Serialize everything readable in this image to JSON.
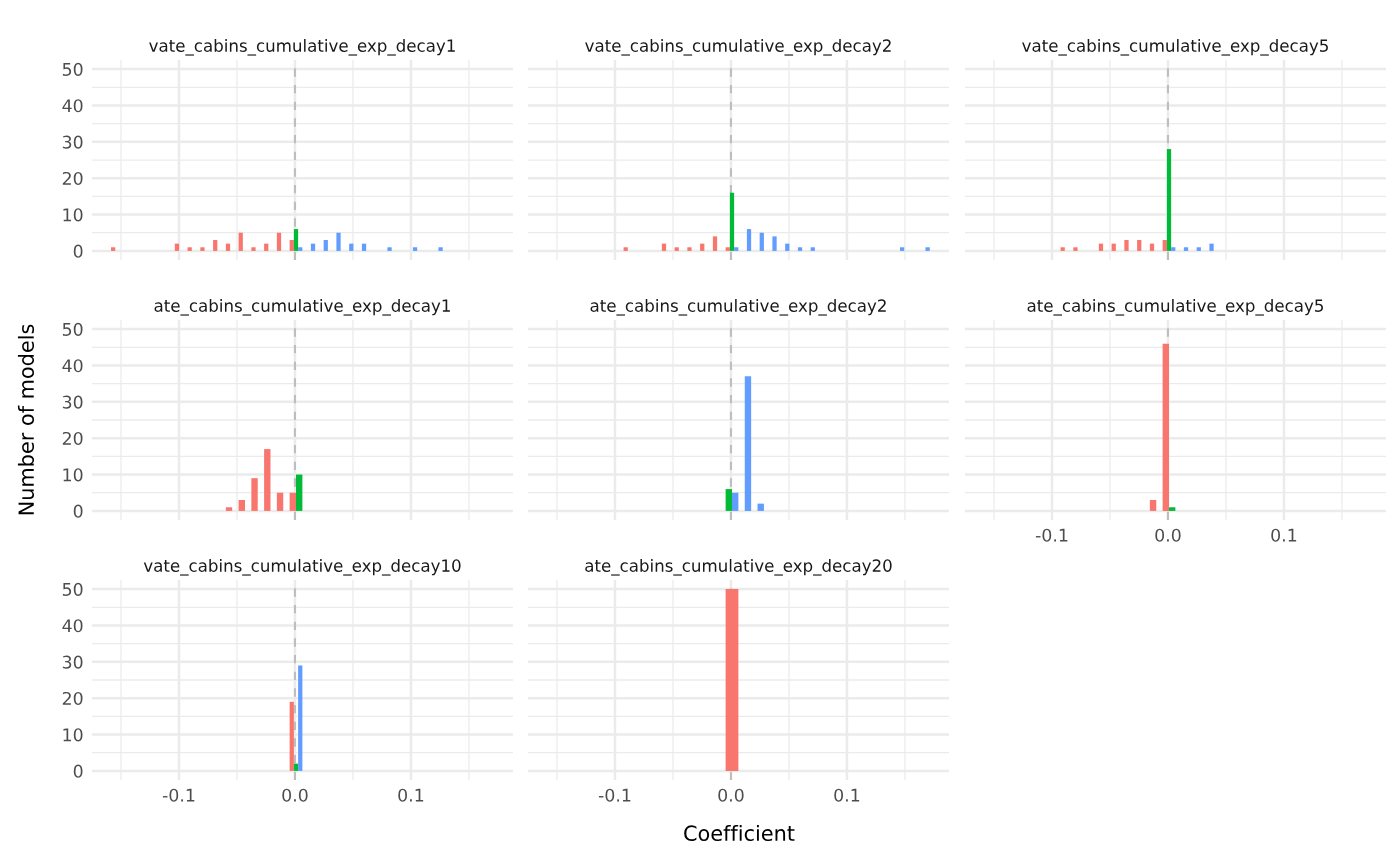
{
  "chart_data": [
    {
      "type": "histogram",
      "title": "vate_cabins_cumulative_exp_decay1",
      "bins": [
        -0.1586,
        -0.1476,
        -0.1366,
        -0.1256,
        -0.1146,
        -0.1036,
        -0.0926,
        -0.0816,
        -0.0706,
        -0.0596,
        -0.0486,
        -0.0376,
        -0.0266,
        -0.0156,
        -0.0046,
        0.0064,
        0.0174,
        0.0284,
        0.0394,
        0.0504,
        0.0614,
        0.0724,
        0.0834,
        0.0944,
        0.1054,
        0.1164,
        0.1274,
        0.1384,
        0.1494,
        0.1604,
        0.1714
      ],
      "series": [
        {
          "color": "#f8766d",
          "values": [
            1,
            0,
            0,
            0,
            0,
            2,
            1,
            1,
            3,
            2,
            5,
            1,
            2,
            5,
            3,
            0,
            0,
            0,
            0,
            0,
            0,
            0,
            0,
            0,
            0,
            0,
            0,
            0,
            0,
            0
          ]
        },
        {
          "color": "#00ba38",
          "values": [
            0,
            0,
            0,
            0,
            0,
            0,
            0,
            0,
            0,
            0,
            0,
            0,
            0,
            0,
            6,
            0,
            0,
            0,
            0,
            0,
            0,
            0,
            0,
            0,
            0,
            0,
            0,
            0,
            0,
            0
          ]
        },
        {
          "color": "#619cff",
          "values": [
            0,
            0,
            0,
            0,
            0,
            0,
            0,
            0,
            0,
            0,
            0,
            0,
            0,
            0,
            1,
            2,
            3,
            5,
            2,
            2,
            0,
            1,
            0,
            1,
            0,
            1,
            0,
            0,
            0,
            0
          ]
        }
      ],
      "xlim": [
        -0.175,
        0.188
      ],
      "ylim": [
        -2.5,
        52.5
      ],
      "xticks": [
        -0.1,
        0,
        0.1
      ],
      "yticks": [
        0,
        10,
        20,
        30,
        40,
        50
      ],
      "tick_labels": "y",
      "grid": true,
      "ref_lines": [
        {
          "axis": "x",
          "value": 0,
          "color": "#bebebe",
          "line_style": "dashed"
        }
      ]
    },
    {
      "type": "histogram",
      "title": "vate_cabins_cumulative_exp_decay2",
      "bins": [
        -0.1586,
        -0.1476,
        -0.1366,
        -0.1256,
        -0.1146,
        -0.1036,
        -0.0926,
        -0.0816,
        -0.0706,
        -0.0596,
        -0.0486,
        -0.0376,
        -0.0266,
        -0.0156,
        -0.0046,
        0.0064,
        0.0174,
        0.0284,
        0.0394,
        0.0504,
        0.0614,
        0.0724,
        0.0834,
        0.0944,
        0.1054,
        0.1164,
        0.1274,
        0.1384,
        0.1494,
        0.1604,
        0.1714
      ],
      "series": [
        {
          "color": "#f8766d",
          "values": [
            0,
            0,
            0,
            0,
            0,
            0,
            1,
            0,
            0,
            2,
            1,
            1,
            2,
            4,
            1,
            0,
            0,
            0,
            0,
            0,
            0,
            0,
            0,
            0,
            0,
            0,
            0,
            0,
            0,
            0
          ]
        },
        {
          "color": "#00ba38",
          "values": [
            0,
            0,
            0,
            0,
            0,
            0,
            0,
            0,
            0,
            0,
            0,
            0,
            0,
            0,
            16,
            0,
            0,
            0,
            0,
            0,
            0,
            0,
            0,
            0,
            0,
            0,
            0,
            0,
            0,
            0
          ]
        },
        {
          "color": "#619cff",
          "values": [
            0,
            0,
            0,
            0,
            0,
            0,
            0,
            0,
            0,
            0,
            0,
            0,
            0,
            0,
            1,
            6,
            5,
            4,
            2,
            1,
            1,
            0,
            0,
            0,
            0,
            0,
            0,
            1,
            0,
            1
          ]
        }
      ],
      "xlim": [
        -0.175,
        0.188
      ],
      "ylim": [
        -2.5,
        52.5
      ],
      "xticks": [
        -0.1,
        0,
        0.1
      ],
      "yticks": [
        0,
        10,
        20,
        30,
        40,
        50
      ],
      "tick_labels": false,
      "grid": true,
      "ref_lines": [
        {
          "axis": "x",
          "value": 0,
          "color": "#bebebe",
          "line_style": "dashed"
        }
      ]
    },
    {
      "type": "histogram",
      "title": "vate_cabins_cumulative_exp_decay5",
      "bins": [
        -0.1586,
        -0.1476,
        -0.1366,
        -0.1256,
        -0.1146,
        -0.1036,
        -0.0926,
        -0.0816,
        -0.0706,
        -0.0596,
        -0.0486,
        -0.0376,
        -0.0266,
        -0.0156,
        -0.0046,
        0.0064,
        0.0174,
        0.0284,
        0.0394,
        0.0504,
        0.0614,
        0.0724,
        0.0834,
        0.0944,
        0.1054,
        0.1164,
        0.1274,
        0.1384,
        0.1494,
        0.1604,
        0.1714
      ],
      "series": [
        {
          "color": "#f8766d",
          "values": [
            0,
            0,
            0,
            0,
            0,
            0,
            1,
            1,
            0,
            2,
            2,
            3,
            3,
            2,
            3,
            0,
            0,
            0,
            0,
            0,
            0,
            0,
            0,
            0,
            0,
            0,
            0,
            0,
            0,
            0
          ]
        },
        {
          "color": "#00ba38",
          "values": [
            0,
            0,
            0,
            0,
            0,
            0,
            0,
            0,
            0,
            0,
            0,
            0,
            0,
            0,
            28,
            0,
            0,
            0,
            0,
            0,
            0,
            0,
            0,
            0,
            0,
            0,
            0,
            0,
            0,
            0
          ]
        },
        {
          "color": "#619cff",
          "values": [
            0,
            0,
            0,
            0,
            0,
            0,
            0,
            0,
            0,
            0,
            0,
            0,
            0,
            0,
            1,
            1,
            1,
            2,
            0,
            0,
            0,
            0,
            0,
            0,
            0,
            0,
            0,
            0,
            0,
            0
          ]
        }
      ],
      "xlim": [
        -0.175,
        0.188
      ],
      "ylim": [
        -2.5,
        52.5
      ],
      "xticks": [
        -0.1,
        0,
        0.1
      ],
      "yticks": [
        0,
        10,
        20,
        30,
        40,
        50
      ],
      "tick_labels": false,
      "grid": true,
      "ref_lines": [
        {
          "axis": "x",
          "value": 0,
          "color": "#bebebe",
          "line_style": "dashed"
        }
      ]
    },
    {
      "type": "histogram",
      "title": "ate_cabins_cumulative_exp_decay1",
      "ylabel": "Number of models",
      "bins": [
        -0.1586,
        -0.1476,
        -0.1366,
        -0.1256,
        -0.1146,
        -0.1036,
        -0.0926,
        -0.0816,
        -0.0706,
        -0.0596,
        -0.0486,
        -0.0376,
        -0.0266,
        -0.0156,
        -0.0046,
        0.0064,
        0.0174,
        0.0284,
        0.0394,
        0.0504,
        0.0614,
        0.0724,
        0.0834,
        0.0944,
        0.1054,
        0.1164,
        0.1274,
        0.1384,
        0.1494,
        0.1604,
        0.1714
      ],
      "series": [
        {
          "color": "#f8766d",
          "values": [
            0,
            0,
            0,
            0,
            0,
            0,
            0,
            0,
            0,
            1,
            3,
            9,
            17,
            5,
            5,
            0,
            0,
            0,
            0,
            0,
            0,
            0,
            0,
            0,
            0,
            0,
            0,
            0,
            0,
            0
          ]
        },
        {
          "color": "#00ba38",
          "values": [
            0,
            0,
            0,
            0,
            0,
            0,
            0,
            0,
            0,
            0,
            0,
            0,
            0,
            0,
            10,
            0,
            0,
            0,
            0,
            0,
            0,
            0,
            0,
            0,
            0,
            0,
            0,
            0,
            0,
            0
          ]
        }
      ],
      "xlim": [
        -0.175,
        0.188
      ],
      "ylim": [
        -2.5,
        52.5
      ],
      "xticks": [
        -0.1,
        0,
        0.1
      ],
      "yticks": [
        0,
        10,
        20,
        30,
        40,
        50
      ],
      "tick_labels": "y",
      "grid": true,
      "ref_lines": [
        {
          "axis": "x",
          "value": 0,
          "color": "#bebebe",
          "line_style": "dashed"
        }
      ]
    },
    {
      "type": "histogram",
      "title": "ate_cabins_cumulative_exp_decay2",
      "bins": [
        -0.1586,
        -0.1476,
        -0.1366,
        -0.1256,
        -0.1146,
        -0.1036,
        -0.0926,
        -0.0816,
        -0.0706,
        -0.0596,
        -0.0486,
        -0.0376,
        -0.0266,
        -0.0156,
        -0.0046,
        0.0064,
        0.0174,
        0.0284,
        0.0394,
        0.0504,
        0.0614,
        0.0724,
        0.0834,
        0.0944,
        0.1054,
        0.1164,
        0.1274,
        0.1384,
        0.1494,
        0.1604,
        0.1714
      ],
      "series": [
        {
          "color": "#00ba38",
          "values": [
            0,
            0,
            0,
            0,
            0,
            0,
            0,
            0,
            0,
            0,
            0,
            0,
            0,
            0,
            6,
            0,
            0,
            0,
            0,
            0,
            0,
            0,
            0,
            0,
            0,
            0,
            0,
            0,
            0,
            0
          ]
        },
        {
          "color": "#619cff",
          "values": [
            0,
            0,
            0,
            0,
            0,
            0,
            0,
            0,
            0,
            0,
            0,
            0,
            0,
            0,
            5,
            37,
            2,
            0,
            0,
            0,
            0,
            0,
            0,
            0,
            0,
            0,
            0,
            0,
            0,
            0
          ]
        }
      ],
      "xlim": [
        -0.175,
        0.188
      ],
      "ylim": [
        -2.5,
        52.5
      ],
      "xticks": [
        -0.1,
        0,
        0.1
      ],
      "yticks": [
        0,
        10,
        20,
        30,
        40,
        50
      ],
      "tick_labels": false,
      "grid": true,
      "ref_lines": [
        {
          "axis": "x",
          "value": 0,
          "color": "#bebebe",
          "line_style": "dashed"
        }
      ]
    },
    {
      "type": "histogram",
      "title": "ate_cabins_cumulative_exp_decay5",
      "bins": [
        -0.1586,
        -0.1476,
        -0.1366,
        -0.1256,
        -0.1146,
        -0.1036,
        -0.0926,
        -0.0816,
        -0.0706,
        -0.0596,
        -0.0486,
        -0.0376,
        -0.0266,
        -0.0156,
        -0.0046,
        0.0064,
        0.0174,
        0.0284,
        0.0394,
        0.0504,
        0.0614,
        0.0724,
        0.0834,
        0.0944,
        0.1054,
        0.1164,
        0.1274,
        0.1384,
        0.1494,
        0.1604,
        0.1714
      ],
      "series": [
        {
          "color": "#f8766d",
          "values": [
            0,
            0,
            0,
            0,
            0,
            0,
            0,
            0,
            0,
            0,
            0,
            0,
            0,
            3,
            46,
            0,
            0,
            0,
            0,
            0,
            0,
            0,
            0,
            0,
            0,
            0,
            0,
            0,
            0,
            0
          ]
        },
        {
          "color": "#00ba38",
          "values": [
            0,
            0,
            0,
            0,
            0,
            0,
            0,
            0,
            0,
            0,
            0,
            0,
            0,
            0,
            1,
            0,
            0,
            0,
            0,
            0,
            0,
            0,
            0,
            0,
            0,
            0,
            0,
            0,
            0,
            0
          ]
        }
      ],
      "xlim": [
        -0.175,
        0.188
      ],
      "ylim": [
        -2.5,
        52.5
      ],
      "xticks": [
        {
          "value": -0.1,
          "label": "-0.1"
        },
        {
          "value": 0,
          "label": "0.0"
        },
        {
          "value": 0.1,
          "label": "0.1"
        }
      ],
      "yticks": [
        0,
        10,
        20,
        30,
        40,
        50
      ],
      "tick_labels": "x",
      "grid": true,
      "ref_lines": [
        {
          "axis": "x",
          "value": 0,
          "color": "#bebebe",
          "line_style": "dashed"
        }
      ]
    },
    {
      "type": "histogram",
      "title": "vate_cabins_cumulative_exp_decay10",
      "bins": [
        -0.1586,
        -0.1476,
        -0.1366,
        -0.1256,
        -0.1146,
        -0.1036,
        -0.0926,
        -0.0816,
        -0.0706,
        -0.0596,
        -0.0486,
        -0.0376,
        -0.0266,
        -0.0156,
        -0.0046,
        0.0064,
        0.0174,
        0.0284,
        0.0394,
        0.0504,
        0.0614,
        0.0724,
        0.0834,
        0.0944,
        0.1054,
        0.1164,
        0.1274,
        0.1384,
        0.1494,
        0.1604,
        0.1714
      ],
      "series": [
        {
          "color": "#f8766d",
          "values": [
            0,
            0,
            0,
            0,
            0,
            0,
            0,
            0,
            0,
            0,
            0,
            0,
            0,
            0,
            19,
            0,
            0,
            0,
            0,
            0,
            0,
            0,
            0,
            0,
            0,
            0,
            0,
            0,
            0,
            0
          ]
        },
        {
          "color": "#00ba38",
          "values": [
            0,
            0,
            0,
            0,
            0,
            0,
            0,
            0,
            0,
            0,
            0,
            0,
            0,
            0,
            2,
            0,
            0,
            0,
            0,
            0,
            0,
            0,
            0,
            0,
            0,
            0,
            0,
            0,
            0,
            0
          ]
        },
        {
          "color": "#619cff",
          "values": [
            0,
            0,
            0,
            0,
            0,
            0,
            0,
            0,
            0,
            0,
            0,
            0,
            0,
            0,
            29,
            0,
            0,
            0,
            0,
            0,
            0,
            0,
            0,
            0,
            0,
            0,
            0,
            0,
            0,
            0
          ]
        }
      ],
      "xlim": [
        -0.175,
        0.188
      ],
      "ylim": [
        -2.5,
        52.5
      ],
      "xticks": [
        {
          "value": -0.1,
          "label": "-0.1"
        },
        {
          "value": 0,
          "label": "0.0"
        },
        {
          "value": 0.1,
          "label": "0.1"
        }
      ],
      "yticks": [
        0,
        10,
        20,
        30,
        40,
        50
      ],
      "grid": true,
      "ref_lines": [
        {
          "axis": "x",
          "value": 0,
          "color": "#bebebe",
          "line_style": "dashed"
        }
      ]
    },
    {
      "type": "histogram",
      "title": "ate_cabins_cumulative_exp_decay20",
      "xlabel": "Coefficient",
      "bins": [
        -0.1586,
        -0.1476,
        -0.1366,
        -0.1256,
        -0.1146,
        -0.1036,
        -0.0926,
        -0.0816,
        -0.0706,
        -0.0596,
        -0.0486,
        -0.0376,
        -0.0266,
        -0.0156,
        -0.0046,
        0.0064,
        0.0174,
        0.0284,
        0.0394,
        0.0504,
        0.0614,
        0.0724,
        0.0834,
        0.0944,
        0.1054,
        0.1164,
        0.1274,
        0.1384,
        0.1494,
        0.1604,
        0.1714
      ],
      "series": [
        {
          "color": "#f8766d",
          "values": [
            0,
            0,
            0,
            0,
            0,
            0,
            0,
            0,
            0,
            0,
            0,
            0,
            0,
            0,
            50,
            0,
            0,
            0,
            0,
            0,
            0,
            0,
            0,
            0,
            0,
            0,
            0,
            0,
            0,
            0
          ]
        }
      ],
      "xlim": [
        -0.175,
        0.188
      ],
      "ylim": [
        -2.5,
        52.5
      ],
      "xticks": [
        {
          "value": -0.1,
          "label": "-0.1"
        },
        {
          "value": 0,
          "label": "0.0"
        },
        {
          "value": 0.1,
          "label": "0.1"
        }
      ],
      "yticks": [
        0,
        10,
        20,
        30,
        40,
        50
      ],
      "tick_labels": "x",
      "grid": true,
      "ref_lines": [
        {
          "axis": "x",
          "value": 0,
          "color": "#bebebe",
          "line_style": "dashed"
        }
      ]
    }
  ]
}
